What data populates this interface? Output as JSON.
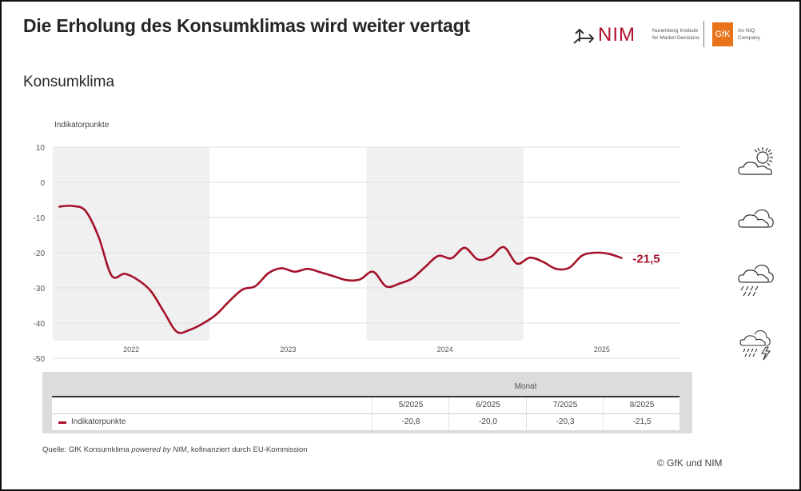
{
  "header": {
    "title": "Die Erholung des Konsumklimas wird weiter vertagt",
    "subtitle": "Konsumklima"
  },
  "logos": {
    "nim_word": "NIM",
    "nim_sub_1": "Nuremberg Institute",
    "nim_sub_2": "for Market Decisions",
    "gfk_word": "GfK",
    "gfk_sub_1": "An NIQ",
    "gfk_sub_2": "Company",
    "nim_color": "#b2102f",
    "gfk_color": "#e8731a"
  },
  "weather_icons": [
    "sun-cloud-icon",
    "cloud-icon",
    "rain-cloud-icon",
    "thunderstorm-icon"
  ],
  "chart_data": {
    "type": "line",
    "title": "Konsumklima",
    "ylabel": "Indikatorpunkte",
    "xlabel": "",
    "ylim": [
      -50,
      10
    ],
    "yticks": [
      10,
      0,
      -10,
      -20,
      -30,
      -40,
      -50
    ],
    "ytick_labels": [
      "10",
      "0",
      "-10",
      "-20",
      "-30",
      "-40",
      "-50"
    ],
    "years": [
      "2022",
      "2023",
      "2024",
      "2025"
    ],
    "shaded_years": [
      "2022",
      "2024"
    ],
    "grid": true,
    "line_color": "#a5122a",
    "end_label": "-21,5",
    "series": [
      {
        "name": "Indikatorpunkte",
        "start": "1/2022",
        "end": "8/2025",
        "values": [
          -6.9,
          -6.7,
          -8.1,
          -15.4,
          -26.5,
          -26.0,
          -27.7,
          -30.9,
          -36.8,
          -42.5,
          -41.9,
          -40.1,
          -37.6,
          -33.8,
          -30.5,
          -29.5,
          -25.8,
          -24.4,
          -25.4,
          -24.6,
          -25.6,
          -26.7,
          -27.8,
          -27.6,
          -25.4,
          -29.6,
          -28.8,
          -27.3,
          -24.0,
          -20.9,
          -21.6,
          -18.6,
          -21.9,
          -21.2,
          -18.4,
          -23.1,
          -21.4,
          -22.6,
          -24.6,
          -24.3,
          -20.8,
          -20.0,
          -20.3,
          -21.5
        ]
      }
    ]
  },
  "table": {
    "group_header": "Monat",
    "columns": [
      "5/2025",
      "6/2025",
      "7/2025",
      "8/2025"
    ],
    "rows": [
      {
        "label": "Indikatorpunkte",
        "values": [
          "-20,8",
          "-20,0",
          "-20,3",
          "-21,5"
        ]
      }
    ]
  },
  "footer": {
    "source_prefix": "Quelle: GfK Konsumklima ",
    "source_italic": "powered by NIM",
    "source_suffix": ", kofinanziert durch EU-Kommission",
    "copyright": "© GfK und NIM"
  }
}
